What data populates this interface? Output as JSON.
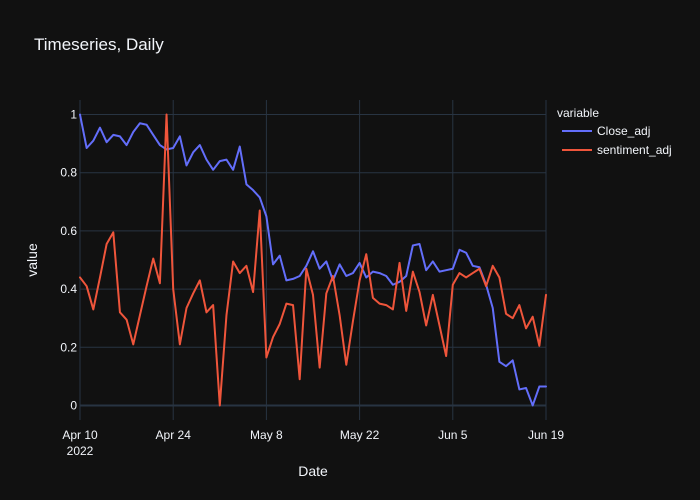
{
  "chart_data": {
    "type": "line",
    "title": "Timeseries, Daily",
    "xlabel": "Date",
    "ylabel": "value",
    "x_range": [
      "2022-04-10",
      "2022-06-19"
    ],
    "ylim": [
      -0.05,
      1.05
    ],
    "x_ticks": [
      {
        "date": "2022-04-10",
        "label": "Apr 10",
        "sublabel": "2022"
      },
      {
        "date": "2022-04-24",
        "label": "Apr 24",
        "sublabel": ""
      },
      {
        "date": "2022-05-08",
        "label": "May 8",
        "sublabel": ""
      },
      {
        "date": "2022-05-22",
        "label": "May 22",
        "sublabel": ""
      },
      {
        "date": "2022-06-05",
        "label": "Jun 5",
        "sublabel": ""
      },
      {
        "date": "2022-06-19",
        "label": "Jun 19",
        "sublabel": ""
      }
    ],
    "y_ticks": [
      {
        "value": 0,
        "label": "0"
      },
      {
        "value": 0.2,
        "label": "0.2"
      },
      {
        "value": 0.4,
        "label": "0.4"
      },
      {
        "value": 0.6,
        "label": "0.6"
      },
      {
        "value": 0.8,
        "label": "0.8"
      },
      {
        "value": 1,
        "label": "1"
      }
    ],
    "grid": true,
    "legend": {
      "title": "variable",
      "placement": "top-right"
    },
    "x": [
      "2022-04-10",
      "2022-04-11",
      "2022-04-12",
      "2022-04-13",
      "2022-04-14",
      "2022-04-15",
      "2022-04-16",
      "2022-04-17",
      "2022-04-18",
      "2022-04-19",
      "2022-04-20",
      "2022-04-21",
      "2022-04-22",
      "2022-04-23",
      "2022-04-24",
      "2022-04-25",
      "2022-04-26",
      "2022-04-27",
      "2022-04-28",
      "2022-04-29",
      "2022-04-30",
      "2022-05-01",
      "2022-05-02",
      "2022-05-03",
      "2022-05-04",
      "2022-05-05",
      "2022-05-06",
      "2022-05-07",
      "2022-05-08",
      "2022-05-09",
      "2022-05-10",
      "2022-05-11",
      "2022-05-12",
      "2022-05-13",
      "2022-05-14",
      "2022-05-15",
      "2022-05-16",
      "2022-05-17",
      "2022-05-18",
      "2022-05-19",
      "2022-05-20",
      "2022-05-21",
      "2022-05-22",
      "2022-05-23",
      "2022-05-24",
      "2022-05-25",
      "2022-05-26",
      "2022-05-27",
      "2022-05-28",
      "2022-05-29",
      "2022-05-30",
      "2022-05-31",
      "2022-06-01",
      "2022-06-02",
      "2022-06-03",
      "2022-06-04",
      "2022-06-05",
      "2022-06-06",
      "2022-06-07",
      "2022-06-08",
      "2022-06-09",
      "2022-06-10",
      "2022-06-11",
      "2022-06-12",
      "2022-06-13",
      "2022-06-14",
      "2022-06-15",
      "2022-06-16",
      "2022-06-17",
      "2022-06-18",
      "2022-06-19"
    ],
    "series": [
      {
        "name": "Close_adj",
        "color": "#636efa",
        "values": [
          1.0,
          0.885,
          0.91,
          0.955,
          0.905,
          0.93,
          0.925,
          0.895,
          0.94,
          0.97,
          0.965,
          0.93,
          0.895,
          0.88,
          0.885,
          0.925,
          0.825,
          0.87,
          0.895,
          0.845,
          0.81,
          0.84,
          0.845,
          0.81,
          0.89,
          0.76,
          0.74,
          0.715,
          0.65,
          0.485,
          0.515,
          0.43,
          0.435,
          0.445,
          0.48,
          0.53,
          0.47,
          0.495,
          0.43,
          0.485,
          0.445,
          0.455,
          0.49,
          0.44,
          0.46,
          0.455,
          0.445,
          0.415,
          0.425,
          0.445,
          0.55,
          0.555,
          0.465,
          0.495,
          0.46,
          0.465,
          0.47,
          0.535,
          0.525,
          0.48,
          0.475,
          0.415,
          0.335,
          0.15,
          0.135,
          0.155,
          0.055,
          0.06,
          0.0,
          0.065,
          0.065
        ]
      },
      {
        "name": "sentiment_adj",
        "color": "#ef553b",
        "values": [
          0.44,
          0.41,
          0.33,
          0.44,
          0.555,
          0.595,
          0.32,
          0.295,
          0.21,
          0.31,
          0.41,
          0.505,
          0.42,
          1.0,
          0.4,
          0.21,
          0.335,
          0.385,
          0.43,
          0.32,
          0.345,
          0.0,
          0.31,
          0.495,
          0.455,
          0.48,
          0.39,
          0.67,
          0.165,
          0.235,
          0.28,
          0.35,
          0.345,
          0.09,
          0.47,
          0.38,
          0.13,
          0.385,
          0.445,
          0.31,
          0.14,
          0.29,
          0.43,
          0.52,
          0.37,
          0.35,
          0.345,
          0.33,
          0.49,
          0.325,
          0.46,
          0.39,
          0.275,
          0.38,
          0.275,
          0.17,
          0.415,
          0.455,
          0.44,
          0.455,
          0.47,
          0.41,
          0.48,
          0.44,
          0.315,
          0.3,
          0.345,
          0.265,
          0.305,
          0.205,
          0.38
        ]
      }
    ]
  }
}
